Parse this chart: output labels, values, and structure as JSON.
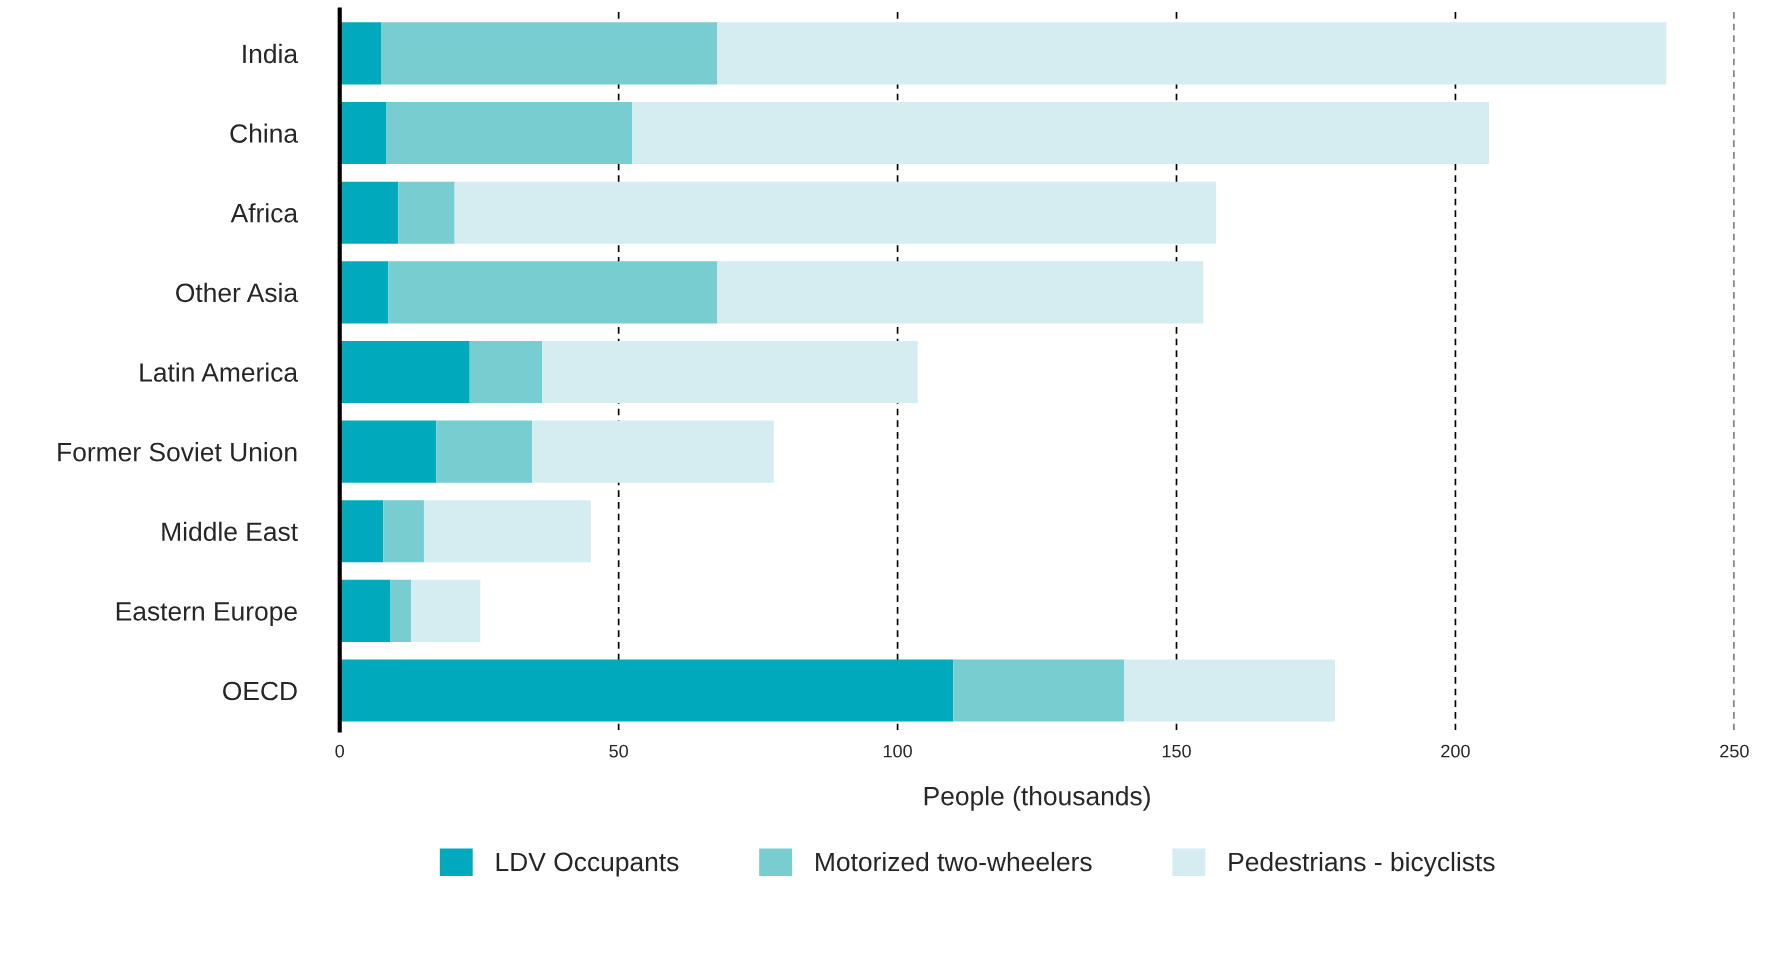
{
  "chart_data": {
    "type": "bar",
    "orientation": "horizontal",
    "stacked": true,
    "categories": [
      "India",
      "China",
      "Africa",
      "Other Asia",
      "Latin America",
      "Former Soviet Union",
      "Middle East",
      "Eastern Europe",
      "OECD"
    ],
    "series": [
      {
        "name": "LDV Occupants",
        "color": "#00a9bc",
        "values": [
          7.4,
          8.3,
          10.5,
          8.7,
          23.3,
          17.3,
          7.8,
          9.1,
          110
        ]
      },
      {
        "name": "Motorized two-wheelers",
        "color": "#77cdd0",
        "values": [
          60.3,
          44.1,
          10.1,
          59.0,
          13.0,
          17.2,
          7.3,
          3.7,
          30.6
        ]
      },
      {
        "name": "Pedestrians - bicyclists",
        "color": "#d5ecf0",
        "values": [
          170.1,
          153.6,
          136.5,
          87.1,
          67.3,
          43.3,
          29.9,
          12.4,
          37.8
        ]
      }
    ],
    "xlabel": "People (thousands)",
    "xlim": [
      0,
      250
    ],
    "xticks": [
      0,
      50,
      100,
      150,
      200,
      250
    ],
    "grid": "x",
    "legend": "bottom"
  }
}
